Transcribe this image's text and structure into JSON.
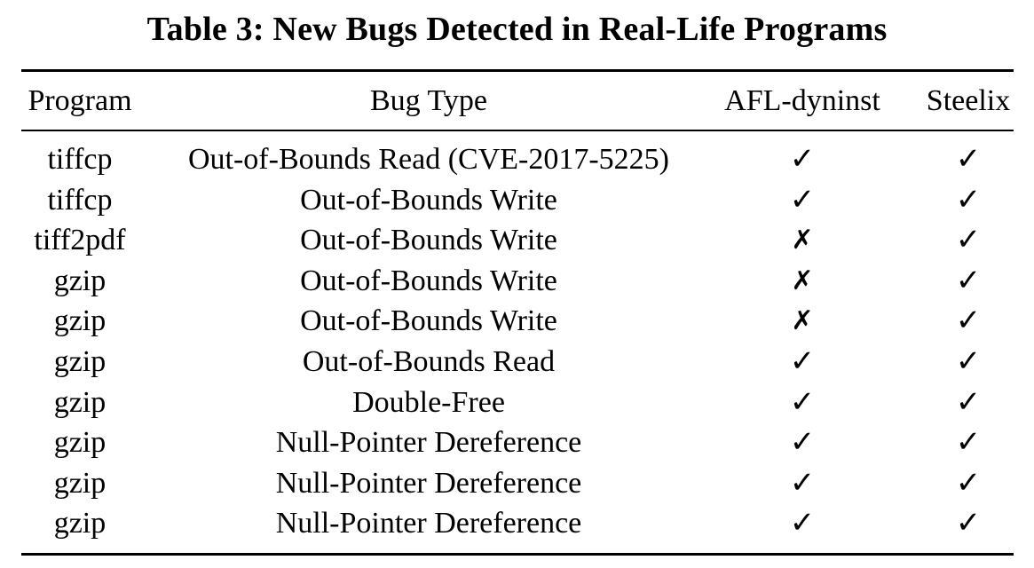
{
  "title": "Table 3: New Bugs Detected in Real-Life Programs",
  "columns": [
    "Program",
    "Bug Type",
    "AFL-dyninst",
    "Steelix"
  ],
  "symbols": {
    "yes": "✓",
    "no": "✗"
  },
  "rows": [
    {
      "program": "tiffcp",
      "bug": "Out-of-Bounds Read (CVE-2017-5225)",
      "afl": "✓",
      "steelix": "✓"
    },
    {
      "program": "tiffcp",
      "bug": "Out-of-Bounds Write",
      "afl": "✓",
      "steelix": "✓"
    },
    {
      "program": "tiff2pdf",
      "bug": "Out-of-Bounds Write",
      "afl": "✗",
      "steelix": "✓"
    },
    {
      "program": "gzip",
      "bug": "Out-of-Bounds Write",
      "afl": "✗",
      "steelix": "✓"
    },
    {
      "program": "gzip",
      "bug": "Out-of-Bounds Write",
      "afl": "✗",
      "steelix": "✓"
    },
    {
      "program": "gzip",
      "bug": "Out-of-Bounds Read",
      "afl": "✓",
      "steelix": "✓"
    },
    {
      "program": "gzip",
      "bug": "Double-Free",
      "afl": "✓",
      "steelix": "✓"
    },
    {
      "program": "gzip",
      "bug": "Null-Pointer Dereference",
      "afl": "✓",
      "steelix": "✓"
    },
    {
      "program": "gzip",
      "bug": "Null-Pointer Dereference",
      "afl": "✓",
      "steelix": "✓"
    },
    {
      "program": "gzip",
      "bug": "Null-Pointer Dereference",
      "afl": "✓",
      "steelix": "✓"
    }
  ]
}
